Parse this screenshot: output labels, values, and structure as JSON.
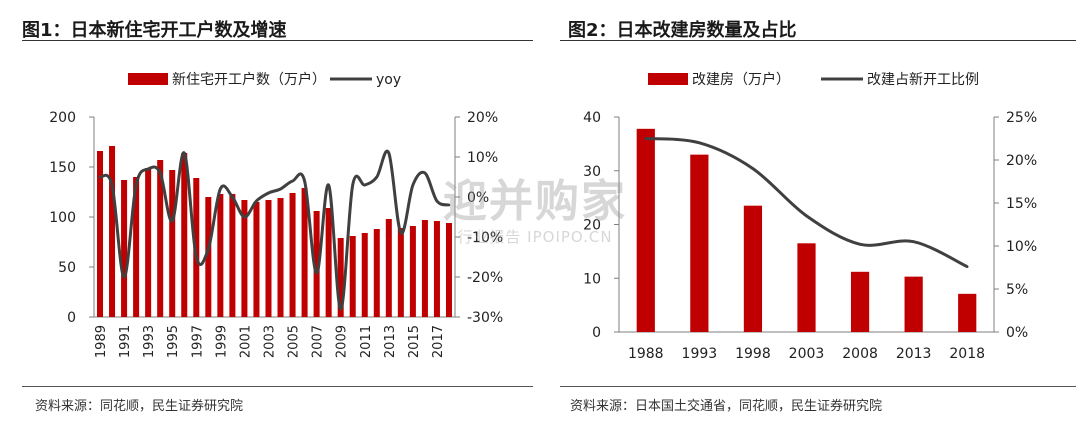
{
  "charts": [
    {
      "title": "图1：日本新住宅开工户数及增速",
      "source": "资料来源：同花顺，民生证券研究院"
    },
    {
      "title": "图2：日本改建房数量及占比",
      "source": "资料来源：日本国土交通省，同花顺，民生证券研究院"
    }
  ],
  "watermark": {
    "main": "迎并购家",
    "sub": "行业报告 IPOIPO.CN"
  },
  "colors": {
    "bar": "#C00000",
    "line": "#404040"
  },
  "chart_data": [
    {
      "type": "bar+line",
      "title": "图1：日本新住宅开工户数及增速",
      "categories": [
        "1989",
        "1990",
        "1991",
        "1992",
        "1993",
        "1994",
        "1995",
        "1996",
        "1997",
        "1998",
        "1999",
        "2000",
        "2001",
        "2002",
        "2003",
        "2004",
        "2005",
        "2006",
        "2007",
        "2008",
        "2009",
        "2010",
        "2011",
        "2012",
        "2013",
        "2014",
        "2015",
        "2016",
        "2017",
        "2018"
      ],
      "x_tick_labels": [
        "1989",
        "1991",
        "1993",
        "1995",
        "1997",
        "1999",
        "2001",
        "2003",
        "2005",
        "2007",
        "2009",
        "2011",
        "2013",
        "2015",
        "2017"
      ],
      "series": [
        {
          "name": "新住宅开工户数（万户）",
          "type": "bar",
          "axis": "left",
          "values": [
            166,
            171,
            137,
            140,
            149,
            157,
            147,
            164,
            139,
            120,
            123,
            123,
            117,
            115,
            117,
            119,
            124,
            129,
            106,
            109,
            79,
            81,
            84,
            88,
            98,
            89,
            91,
            97,
            96,
            94
          ]
        },
        {
          "name": "yoy",
          "type": "line",
          "axis": "right",
          "values": [
            5,
            3,
            -20,
            3,
            7,
            6,
            -6,
            11,
            -15,
            -13,
            2,
            0,
            -5,
            -1,
            1,
            2,
            4,
            4,
            -19,
            3,
            -28,
            3,
            3,
            5,
            11,
            -9,
            3,
            6,
            -1,
            -2
          ]
        }
      ],
      "left_axis": {
        "min": 0,
        "max": 200,
        "ticks": [
          "0",
          "50",
          "100",
          "150",
          "200"
        ]
      },
      "right_axis": {
        "min": -30,
        "max": 20,
        "ticks": [
          "-30%",
          "-20%",
          "-10%",
          "0%",
          "10%",
          "20%"
        ]
      },
      "legend": "top",
      "grid": false
    },
    {
      "type": "bar+line",
      "title": "图2：日本改建房数量及占比",
      "categories": [
        "1988",
        "1993",
        "1998",
        "2003",
        "2008",
        "2013",
        "2018"
      ],
      "series": [
        {
          "name": "改建房（万户）",
          "type": "bar",
          "axis": "left",
          "values": [
            37.8,
            33,
            23.5,
            16.5,
            11.2,
            10.3,
            7.1
          ]
        },
        {
          "name": "改建占新开工比例",
          "type": "line",
          "axis": "right",
          "values": [
            22.5,
            22,
            19,
            13.5,
            10.2,
            10.5,
            7.6
          ]
        }
      ],
      "left_axis": {
        "min": 0,
        "max": 40,
        "ticks": [
          "0",
          "10",
          "20",
          "30",
          "40"
        ]
      },
      "right_axis": {
        "min": 0,
        "max": 25,
        "ticks": [
          "0%",
          "5%",
          "10%",
          "15%",
          "20%",
          "25%"
        ]
      },
      "legend": "top",
      "grid": false
    }
  ]
}
